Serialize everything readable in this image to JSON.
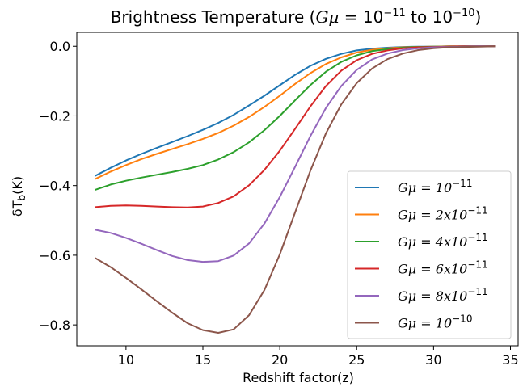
{
  "chart_data": {
    "type": "line",
    "title_prefix": "Brightness Temperature (",
    "title_math_lhs": "Gμ",
    "title_math_eq": " = 10",
    "title_exp1": "−11",
    "title_mid": " to 10",
    "title_exp2": "−10",
    "title_suffix": ")",
    "xlabel": "Redshift factor(z)",
    "ylabel_prefix": "δT",
    "ylabel_sub": "b",
    "ylabel_suffix": "(K)",
    "xlim": [
      6.8,
      35.5
    ],
    "ylim": [
      -0.86,
      0.04
    ],
    "xticks": [
      10,
      15,
      20,
      25,
      30,
      35
    ],
    "yticks": [
      0.0,
      -0.2,
      -0.4,
      -0.6,
      -0.8
    ],
    "xtick_labels": [
      "10",
      "15",
      "20",
      "25",
      "30",
      "35"
    ],
    "ytick_labels": [
      "0.0",
      "−0.2",
      "−0.4",
      "−0.6",
      "−0.8"
    ],
    "legend_position": "lower-right",
    "x": [
      8,
      9,
      10,
      11,
      12,
      13,
      14,
      15,
      16,
      17,
      18,
      19,
      20,
      21,
      22,
      23,
      24,
      25,
      26,
      27,
      28,
      29,
      30,
      31,
      32,
      33,
      34
    ],
    "series": [
      {
        "name": "Gμ = 10",
        "exp": "−11",
        "color": "#1f77b4",
        "values": [
          -0.372,
          -0.349,
          -0.328,
          -0.309,
          -0.292,
          -0.275,
          -0.258,
          -0.24,
          -0.22,
          -0.197,
          -0.17,
          -0.142,
          -0.112,
          -0.082,
          -0.056,
          -0.036,
          -0.022,
          -0.012,
          -0.007,
          -0.004,
          -0.002,
          -0.001,
          -0.001,
          0.0,
          0.0,
          0.0,
          0.0
        ]
      },
      {
        "name": "Gμ = 2x10",
        "exp": "−11",
        "color": "#ff7f0e",
        "values": [
          -0.381,
          -0.36,
          -0.341,
          -0.324,
          -0.309,
          -0.295,
          -0.281,
          -0.266,
          -0.249,
          -0.228,
          -0.203,
          -0.174,
          -0.142,
          -0.108,
          -0.077,
          -0.051,
          -0.032,
          -0.018,
          -0.01,
          -0.006,
          -0.003,
          -0.002,
          -0.001,
          0.0,
          0.0,
          0.0,
          0.0
        ]
      },
      {
        "name": "Gμ = 4x10",
        "exp": "−11",
        "color": "#2ca02c",
        "values": [
          -0.412,
          -0.397,
          -0.386,
          -0.377,
          -0.369,
          -0.361,
          -0.352,
          -0.341,
          -0.325,
          -0.304,
          -0.276,
          -0.241,
          -0.2,
          -0.155,
          -0.111,
          -0.073,
          -0.045,
          -0.026,
          -0.014,
          -0.008,
          -0.004,
          -0.002,
          -0.001,
          -0.001,
          0.0,
          0.0,
          0.0
        ]
      },
      {
        "name": "Gμ = 6x10",
        "exp": "−11",
        "color": "#d62728",
        "values": [
          -0.462,
          -0.458,
          -0.457,
          -0.458,
          -0.46,
          -0.462,
          -0.463,
          -0.46,
          -0.45,
          -0.431,
          -0.399,
          -0.355,
          -0.3,
          -0.237,
          -0.172,
          -0.114,
          -0.07,
          -0.04,
          -0.022,
          -0.012,
          -0.006,
          -0.003,
          -0.002,
          -0.001,
          0.0,
          0.0,
          0.0
        ]
      },
      {
        "name": "Gμ = 8x10",
        "exp": "−11",
        "color": "#9467bd",
        "values": [
          -0.527,
          -0.536,
          -0.55,
          -0.567,
          -0.585,
          -0.602,
          -0.614,
          -0.619,
          -0.617,
          -0.601,
          -0.566,
          -0.509,
          -0.433,
          -0.346,
          -0.257,
          -0.177,
          -0.114,
          -0.068,
          -0.038,
          -0.021,
          -0.011,
          -0.006,
          -0.003,
          -0.002,
          -0.001,
          0.0,
          0.0
        ]
      },
      {
        "name": "Gμ = 10",
        "exp": "−10",
        "color": "#8c564b",
        "values": [
          -0.608,
          -0.634,
          -0.665,
          -0.698,
          -0.732,
          -0.765,
          -0.795,
          -0.815,
          -0.823,
          -0.813,
          -0.772,
          -0.7,
          -0.598,
          -0.477,
          -0.356,
          -0.25,
          -0.167,
          -0.106,
          -0.064,
          -0.037,
          -0.021,
          -0.011,
          -0.006,
          -0.003,
          -0.002,
          -0.001,
          0.0
        ]
      }
    ]
  }
}
